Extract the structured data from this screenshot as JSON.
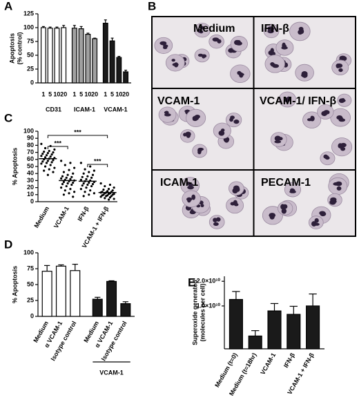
{
  "chart_data": [
    {
      "type": "bar",
      "panel": "A",
      "ylabel": [
        "Apoptosis",
        "(% control)"
      ],
      "ylim": [
        0,
        125
      ],
      "yticks": [
        0,
        25,
        50,
        75,
        100,
        125
      ],
      "categories": [
        "1",
        "5",
        "10",
        "20",
        "1",
        "5",
        "10",
        "20",
        "1",
        "5",
        "10",
        "20"
      ],
      "series": [
        {
          "name": "CD31",
          "color": "#ffffff",
          "values": [
            100,
            99,
            99,
            100,
            null,
            null,
            null,
            null,
            null,
            null,
            null,
            null
          ],
          "errors": [
            2,
            2,
            2,
            4,
            null,
            null,
            null,
            null,
            null,
            null,
            null,
            null
          ]
        },
        {
          "name": "ICAM-1",
          "color": "#a0a0a0",
          "values": [
            null,
            null,
            null,
            null,
            99,
            98,
            88,
            80,
            null,
            null,
            null,
            null
          ],
          "errors": [
            null,
            null,
            null,
            null,
            5,
            4,
            2,
            1,
            null,
            null,
            null,
            null
          ]
        },
        {
          "name": "VCAM-1",
          "color": "#1a1a1a",
          "values": [
            null,
            null,
            null,
            null,
            null,
            null,
            null,
            null,
            108,
            76,
            46,
            20
          ],
          "errors": [
            null,
            null,
            null,
            null,
            null,
            null,
            null,
            null,
            6,
            5,
            2,
            3
          ]
        }
      ]
    },
    {
      "type": "dot",
      "panel": "C",
      "ylabel": "% Apoptosis",
      "ylim": [
        0,
        100
      ],
      "yticks": [
        0,
        10,
        20,
        30,
        40,
        50,
        60,
        70,
        80,
        90,
        100
      ],
      "categories": [
        "Medium",
        "VCAM-1",
        "IFN-β",
        "VCAM-1 + IFN-β"
      ],
      "means": [
        61,
        30,
        29,
        13
      ],
      "points": [
        [
          82,
          79,
          76,
          74,
          72,
          71,
          70,
          69,
          68,
          67,
          66,
          65,
          64,
          63,
          62,
          61,
          60,
          59,
          58,
          57,
          56,
          55,
          54,
          52,
          50,
          48,
          46,
          44,
          42,
          38
        ],
        [
          58,
          55,
          52,
          48,
          45,
          42,
          40,
          38,
          36,
          35,
          34,
          33,
          32,
          31,
          30,
          29,
          28,
          27,
          26,
          25,
          24,
          22,
          20,
          18,
          16,
          14,
          12,
          10,
          7
        ],
        [
          55,
          50,
          46,
          44,
          42,
          40,
          38,
          36,
          35,
          34,
          32,
          31,
          30,
          29,
          28,
          27,
          26,
          25,
          24,
          23,
          22,
          20,
          18,
          16,
          14,
          12,
          10,
          8
        ],
        [
          26,
          24,
          22,
          20,
          18,
          17,
          16,
          15,
          14,
          14,
          13,
          13,
          12,
          12,
          11,
          11,
          10,
          10,
          9,
          9,
          8,
          8,
          7,
          6,
          5,
          4,
          3
        ]
      ],
      "annotations": [
        "***",
        "***",
        "***"
      ]
    },
    {
      "type": "bar",
      "panel": "D",
      "ylabel": "% Apoptosis",
      "ylim": [
        0,
        100
      ],
      "yticks": [
        0,
        25,
        50,
        75,
        100
      ],
      "categories": [
        "Medium",
        "α VCAM-1",
        "Isotype control",
        "Medium",
        "α VCAM-1",
        "Isotype control"
      ],
      "series": [
        {
          "color": "#ffffff",
          "values": [
            71,
            79,
            72,
            null,
            null,
            null
          ],
          "errors": [
            9,
            2,
            10,
            null,
            null,
            null
          ]
        },
        {
          "name": "VCAM-1",
          "color": "#1a1a1a",
          "values": [
            null,
            null,
            null,
            27,
            55,
            20
          ],
          "errors": [
            null,
            null,
            null,
            3,
            1,
            3
          ]
        }
      ]
    },
    {
      "type": "bar",
      "panel": "E",
      "ylabel": [
        "Superoxide generated",
        "(molecules per cell)"
      ],
      "log_scale": true,
      "ylim": [
        3000000000,
        23000000000
      ],
      "yticks": [
        {
          "value": 10000000000,
          "label": "1.0×10¹⁰"
        },
        {
          "value": 20000000000,
          "label": "2.0×10¹⁰"
        }
      ],
      "categories": [
        "Medium (t=0)",
        "Medium (t=18hr)",
        "VCAM-1",
        "IFN-β",
        "VCAM-1 + IFN-β"
      ],
      "series": [
        {
          "color": "#1a1a1a",
          "values": [
            12000000000,
            4300000000,
            8700000000,
            7900000000,
            10000000000
          ],
          "errors": [
            3000000000,
            700000000,
            2000000000,
            2000000000,
            4000000000
          ]
        }
      ]
    }
  ],
  "micrographs": {
    "panel": "B",
    "labels": [
      "Medium",
      "IFN-β",
      "VCAM-1",
      "VCAM-1/ IFN-β",
      "ICAM-1",
      "PECAM-1"
    ]
  }
}
